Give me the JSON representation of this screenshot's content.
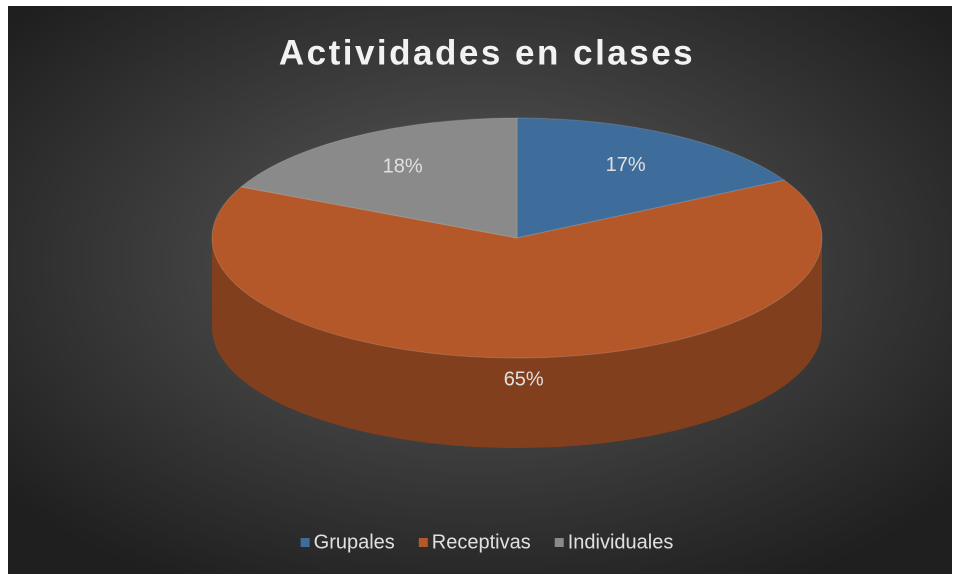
{
  "chart_data": {
    "type": "pie3d",
    "title": "Actividades en clases",
    "categories": [
      "Grupales",
      "Receptivas",
      "Individuales"
    ],
    "values": [
      17,
      65,
      18
    ],
    "value_labels": [
      "17%",
      "65%",
      "18%"
    ],
    "colors": [
      "#3f6d9b",
      "#b4582a",
      "#8a8a8a"
    ],
    "legend": "bottom"
  }
}
